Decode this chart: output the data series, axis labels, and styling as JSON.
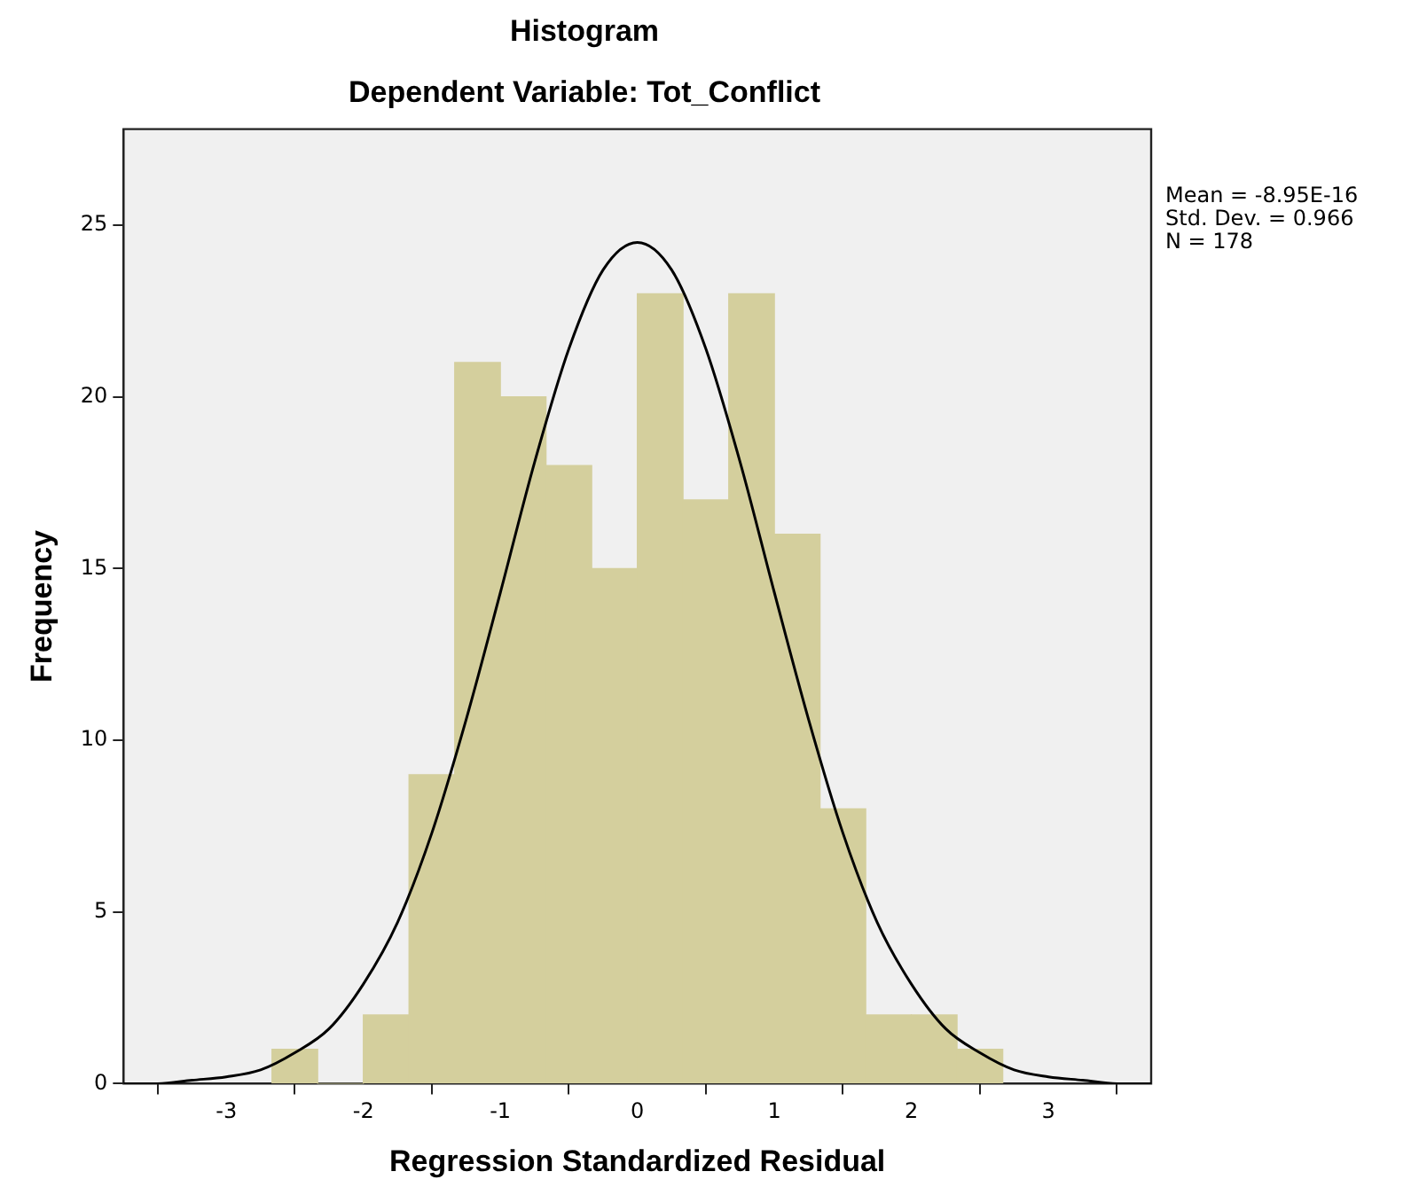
{
  "chart_data": {
    "type": "histogram",
    "title": "Histogram",
    "subtitle": "Dependent Variable: Tot_Conflict",
    "xlabel": "Regression Standardized Residual",
    "ylabel": "Frequency",
    "bins": [
      -2.667,
      -2.333,
      -2,
      -1.667,
      -1.333,
      -1,
      -0.667,
      -0.333,
      0,
      0.333,
      0.667,
      1,
      1.333,
      1.667,
      2,
      2.333,
      2.667
    ],
    "values": [
      1,
      0,
      2,
      9,
      21,
      20,
      18,
      15,
      23,
      17,
      23,
      16,
      8,
      2,
      2,
      1
    ],
    "color": "#d4cf9d",
    "series": [
      {
        "type": "line",
        "color": "#000000",
        "x": [
          -3.75,
          -3.5,
          -3.25,
          -3,
          -2.75,
          -2.5,
          -2.25,
          -2,
          -1.75,
          -1.5,
          -1.25,
          -1,
          -0.75,
          -0.5,
          -0.25,
          0,
          0.25,
          0.5,
          0.75,
          1,
          1.25,
          1.5,
          1.75,
          2,
          2.25,
          2.5,
          2.75,
          3,
          3.25,
          3.5,
          3.75
        ],
        "values": [
          0,
          0,
          0.1,
          0.2,
          0.4,
          0.9,
          1.6,
          2.9,
          4.7,
          7.3,
          10.6,
          14.3,
          18.1,
          21.4,
          23.7,
          24.5,
          23.7,
          21.4,
          18.1,
          14.3,
          10.6,
          7.3,
          4.7,
          2.9,
          1.6,
          0.9,
          0.4,
          0.2,
          0.1,
          0,
          0
        ]
      }
    ],
    "xlim": [
      -3.75,
      3.75
    ],
    "xticks": [
      -3,
      -2,
      -1,
      0,
      1,
      2,
      3
    ],
    "ylim": [
      0,
      27.8
    ],
    "yticks": [
      0,
      5,
      10,
      15,
      20,
      25
    ],
    "grid": false,
    "legend": false,
    "marker": "none",
    "annotations": [
      "Mean = -8.95E-16",
      "Std. Dev. = 0.966",
      "N = 178"
    ]
  }
}
